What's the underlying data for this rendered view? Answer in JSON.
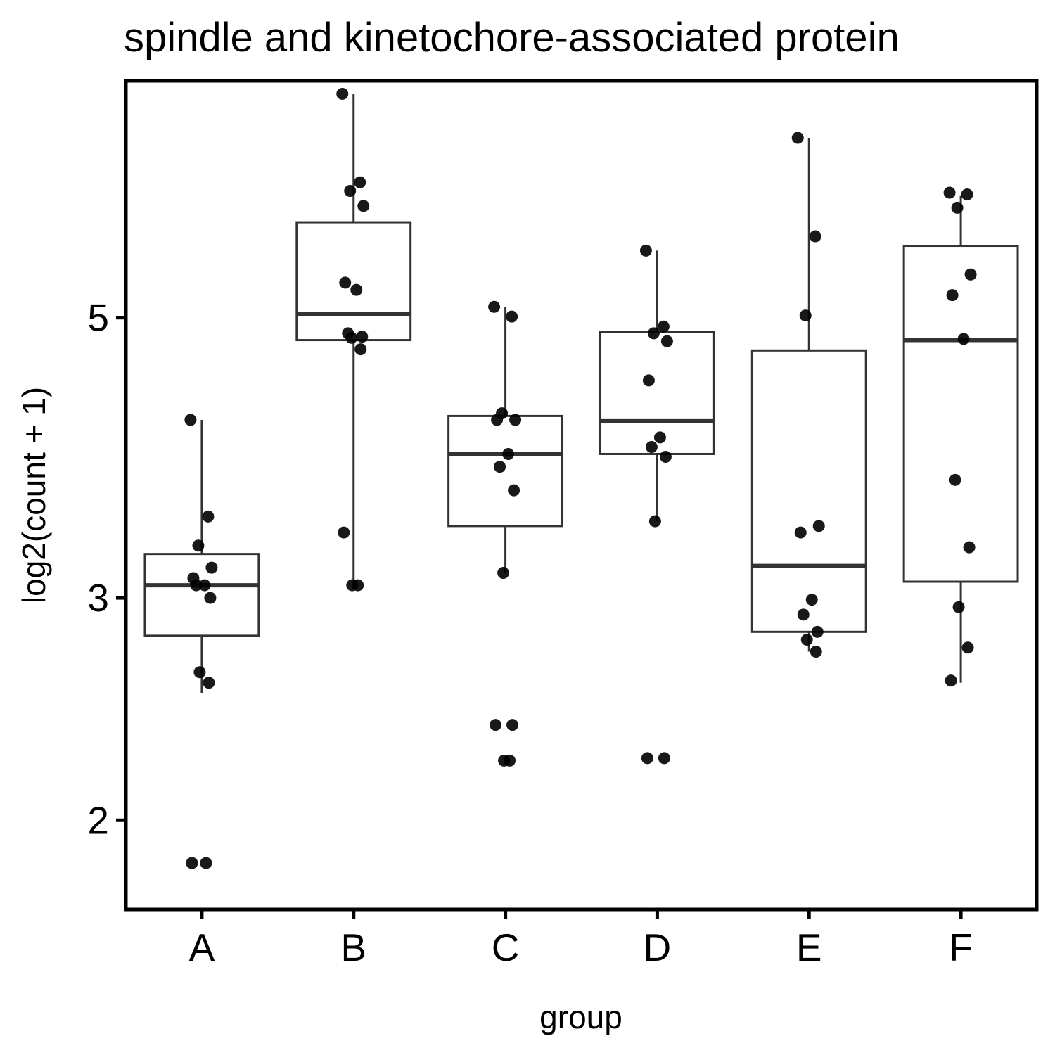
{
  "chart_data": {
    "type": "box",
    "title": "spindle and kinetochore-associated protein",
    "xlabel": "group",
    "ylabel": "log2(count + 1)",
    "y_scale": "log",
    "ylim": [
      1.7,
      7.7
    ],
    "yticks": [
      2,
      3,
      5
    ],
    "categories": [
      "A",
      "B",
      "C",
      "D",
      "E",
      "F"
    ],
    "colors": {
      "box_stroke": "#333333",
      "point": "#000000",
      "frame": "#000000"
    },
    "boxes": [
      {
        "group": "A",
        "whisker_low": 2.52,
        "q1": 2.8,
        "median": 3.07,
        "q3": 3.25,
        "whisker_high": 4.15
      },
      {
        "group": "B",
        "whisker_low": 3.07,
        "q1": 4.8,
        "median": 5.03,
        "q3": 5.95,
        "whisker_high": 7.52
      },
      {
        "group": "C",
        "whisker_low": 3.14,
        "q1": 3.42,
        "median": 3.9,
        "q3": 4.18,
        "whisker_high": 5.1
      },
      {
        "group": "D",
        "whisker_low": 3.45,
        "q1": 3.9,
        "median": 4.14,
        "q3": 4.87,
        "whisker_high": 5.65
      },
      {
        "group": "E",
        "whisker_low": 2.72,
        "q1": 2.82,
        "median": 3.18,
        "q3": 4.71,
        "whisker_high": 6.94
      },
      {
        "group": "F",
        "whisker_low": 2.57,
        "q1": 3.09,
        "median": 4.8,
        "q3": 5.7,
        "whisker_high": 6.25
      }
    ],
    "points": [
      {
        "group": "A",
        "values": [
          4.15,
          3.48,
          3.3,
          3.17,
          3.11,
          3.07,
          3.07,
          3.0,
          2.62,
          2.57,
          1.85,
          1.85
        ]
      },
      {
        "group": "B",
        "values": [
          7.52,
          6.4,
          6.3,
          6.13,
          5.33,
          5.26,
          4.86,
          4.83,
          4.82,
          4.72,
          3.38,
          3.07,
          3.07
        ]
      },
      {
        "group": "C",
        "values": [
          5.1,
          5.01,
          4.2,
          4.15,
          4.15,
          3.9,
          3.81,
          3.65,
          3.14,
          2.38,
          2.38,
          2.23,
          2.23
        ]
      },
      {
        "group": "D",
        "values": [
          5.65,
          4.92,
          4.86,
          4.79,
          4.46,
          4.02,
          3.95,
          3.88,
          3.45,
          2.24,
          2.24
        ]
      },
      {
        "group": "E",
        "values": [
          6.94,
          5.8,
          5.02,
          3.42,
          3.38,
          2.99,
          2.91,
          2.82,
          2.78,
          2.72
        ]
      },
      {
        "group": "F",
        "values": [
          6.28,
          6.26,
          6.11,
          5.41,
          5.21,
          4.81,
          3.72,
          3.29,
          2.95,
          2.74,
          2.58
        ]
      }
    ],
    "grid": false,
    "legend": "none"
  }
}
